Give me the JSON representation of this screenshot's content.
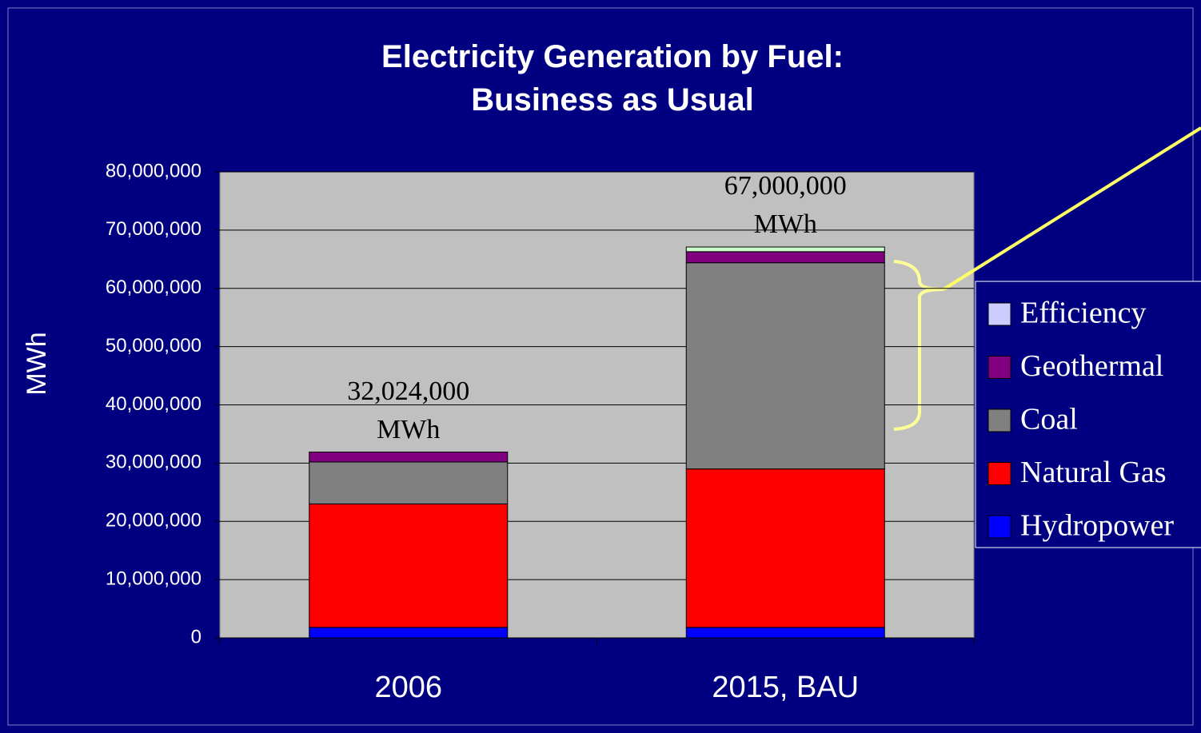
{
  "chart_data": {
    "type": "stacked_bar",
    "title": "Electricity Generation by Fuel: Business as Usual",
    "y_label": "MWh",
    "categories": [
      "2006",
      "2015, BAU"
    ],
    "series": [
      {
        "name": "Hydropower",
        "color": "#0000ff",
        "values": [
          1800000,
          1800000
        ]
      },
      {
        "name": "Natural Gas",
        "color": "#ff0000",
        "values": [
          21200000,
          27200000
        ]
      },
      {
        "name": "Coal",
        "color": "#808080",
        "values": [
          7200000,
          35400000
        ]
      },
      {
        "name": "Geothermal",
        "color": "#800080",
        "values": [
          1700000,
          1900000
        ]
      },
      {
        "name": "Efficiency",
        "color": "#ccffcc",
        "values": [
          0,
          800000
        ]
      }
    ],
    "annotations": [
      "32,024,000 MWh",
      "67,000,000 MWh"
    ],
    "ylim": [
      0,
      80000000
    ],
    "yticks": [
      0,
      {
        "value": 10000000,
        "label": "10,000,000"
      },
      {
        "value": 20000000,
        "label": "20,000,000"
      },
      {
        "value": 30000000,
        "label": "30,000,000"
      },
      {
        "value": 40000000,
        "label": "40,000,000"
      },
      {
        "value": 50000000,
        "label": "50,000,000"
      },
      {
        "value": 60000000,
        "label": "60,000,000"
      },
      {
        "value": 70000000,
        "label": "70,000,000"
      },
      {
        "value": 80000000,
        "label": "80,000,000"
      }
    ],
    "grid": true,
    "legend": "right"
  }
}
